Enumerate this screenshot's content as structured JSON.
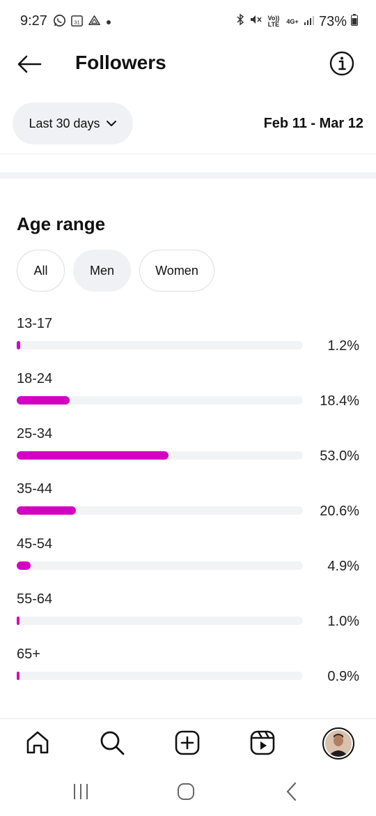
{
  "status_bar": {
    "time": "9:27",
    "battery": "73%",
    "network_top": "Vo)) LTE",
    "network_gen": "4G+"
  },
  "header": {
    "title": "Followers"
  },
  "filters": {
    "range_label": "Last 30 days",
    "date_range": "Feb 11 - Mar 12"
  },
  "age_section": {
    "title": "Age range",
    "segments": [
      {
        "label": "All",
        "active": false
      },
      {
        "label": "Men",
        "active": true
      },
      {
        "label": "Women",
        "active": false
      }
    ],
    "rows": [
      {
        "range": "13-17",
        "percent": "1.2%",
        "value": 1.2
      },
      {
        "range": "18-24",
        "percent": "18.4%",
        "value": 18.4
      },
      {
        "range": "25-34",
        "percent": "53.0%",
        "value": 53.0
      },
      {
        "range": "35-44",
        "percent": "20.6%",
        "value": 20.6
      },
      {
        "range": "45-54",
        "percent": "4.9%",
        "value": 4.9
      },
      {
        "range": "55-64",
        "percent": "1.0%",
        "value": 1.0
      },
      {
        "range": "65+",
        "percent": "0.9%",
        "value": 0.9
      }
    ]
  },
  "colors": {
    "accent": "#d400c2",
    "track": "#f2f3f5",
    "chip_active": "#eff1f4"
  },
  "bottom_nav": {
    "items": [
      "home-icon",
      "search-icon",
      "create-icon",
      "reels-icon",
      "profile-avatar"
    ]
  },
  "system_nav": {
    "items": [
      "recents-icon",
      "home-circle-icon",
      "back-chevron-icon"
    ]
  }
}
